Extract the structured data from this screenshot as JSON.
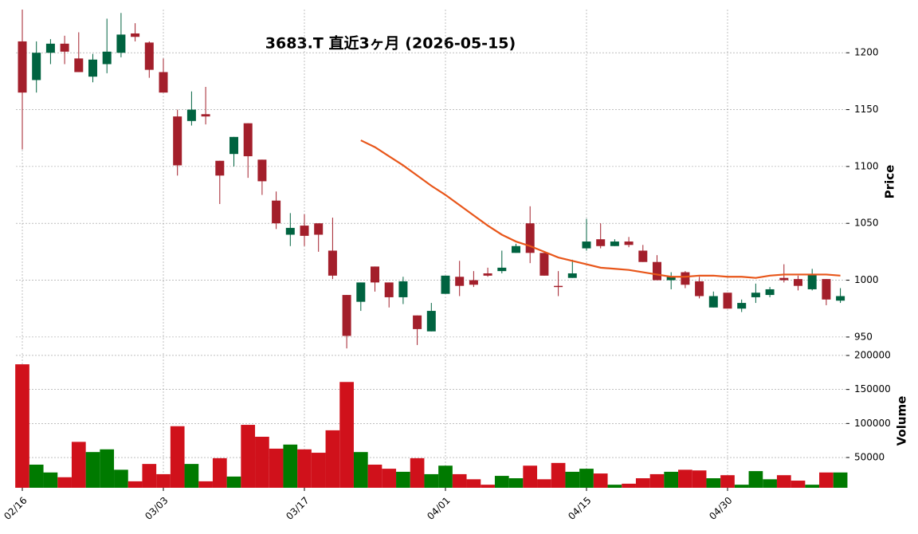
{
  "chart_data": [
    {
      "type": "candlestick",
      "title": "3683.T 直近3ヶ月 (2026-05-15)",
      "ylabel": "Price",
      "categories": [
        "02/16",
        null,
        null,
        null,
        null,
        null,
        null,
        null,
        null,
        null,
        "03/03",
        null,
        null,
        null,
        null,
        null,
        null,
        null,
        null,
        null,
        "03/17",
        null,
        null,
        null,
        null,
        null,
        null,
        null,
        null,
        null,
        "04/01",
        null,
        null,
        null,
        null,
        null,
        null,
        null,
        null,
        null,
        "04/15",
        null,
        null,
        null,
        null,
        null,
        null,
        null,
        null,
        null,
        "04/30",
        null,
        null,
        null,
        null,
        null,
        null,
        null,
        null
      ],
      "open": [
        1210,
        1176,
        1200,
        1208,
        1195,
        1179,
        1190,
        1200,
        1217,
        1209,
        1183,
        1144,
        1140,
        1146,
        1105,
        1111,
        1138,
        1106,
        1070,
        1040,
        1048,
        1050,
        1026,
        987,
        981,
        1012,
        998,
        985,
        969,
        955,
        988,
        1003,
        1000,
        1006,
        1008,
        1024,
        1050,
        1024,
        995,
        1002,
        1028,
        1036,
        1030,
        1034,
        1026,
        1016,
        1000,
        1007,
        999,
        976,
        989,
        975,
        985,
        987,
        1002,
        1001,
        992,
        1001,
        982
      ],
      "high": [
        1238,
        1210,
        1212,
        1215,
        1218,
        1199,
        1230,
        1235,
        1226,
        1210,
        1195,
        1150,
        1166,
        1170,
        1105,
        1126,
        1138,
        1106,
        1078,
        1059,
        1058,
        1050,
        1055,
        987,
        998,
        1012,
        998,
        1003,
        969,
        980,
        1004,
        1017,
        1008,
        1011,
        1026,
        1032,
        1065,
        1024,
        1008,
        1018,
        1054,
        1050,
        1036,
        1038,
        1031,
        1022,
        1007,
        1008,
        1003,
        990,
        989,
        983,
        997,
        994,
        1014,
        1004,
        1010,
        1001,
        993
      ],
      "low": [
        1115,
        1165,
        1190,
        1190,
        1183,
        1174,
        1182,
        1196,
        1210,
        1178,
        1165,
        1092,
        1136,
        1137,
        1067,
        1100,
        1090,
        1075,
        1045,
        1030,
        1030,
        1025,
        1001,
        940,
        973,
        990,
        976,
        979,
        943,
        955,
        988,
        986,
        994,
        1003,
        1006,
        1024,
        1015,
        1004,
        986,
        1002,
        1026,
        1028,
        1030,
        1029,
        1016,
        1000,
        992,
        993,
        984,
        976,
        975,
        972,
        980,
        985,
        998,
        991,
        991,
        978,
        980
      ],
      "close": [
        1165,
        1200,
        1208,
        1201,
        1183,
        1194,
        1201,
        1216,
        1214,
        1185,
        1165,
        1101,
        1150,
        1144,
        1092,
        1126,
        1109,
        1087,
        1050,
        1046,
        1039,
        1040,
        1004,
        951,
        998,
        998,
        985,
        999,
        957,
        973,
        1004,
        995,
        996,
        1004,
        1011,
        1030,
        1024,
        1004,
        994,
        1006,
        1034,
        1030,
        1034,
        1031,
        1016,
        1000,
        1003,
        996,
        986,
        986,
        975,
        980,
        989,
        992,
        1000,
        995,
        1005,
        983,
        986
      ],
      "up_color": "#006340",
      "down_color": "#a31f2b",
      "ma": {
        "color": "#e8561a",
        "values": [
          null,
          null,
          null,
          null,
          null,
          null,
          null,
          null,
          null,
          null,
          null,
          null,
          null,
          null,
          null,
          null,
          null,
          null,
          null,
          null,
          null,
          null,
          null,
          null,
          1123,
          1117,
          1109,
          1101,
          1092,
          1083,
          1075,
          1066,
          1057,
          1048,
          1040,
          1034,
          1030,
          1025,
          1020,
          1017,
          1014,
          1011,
          1010,
          1009,
          1007,
          1005,
          1003,
          1003,
          1004,
          1004,
          1003,
          1003,
          1002,
          1004,
          1005,
          1005,
          1005,
          1005,
          1004
        ]
      },
      "ylim": [
        938,
        1238
      ],
      "yticks": [
        950,
        1000,
        1050,
        1100,
        1150,
        1200
      ],
      "grid": true
    },
    {
      "type": "bar",
      "ylabel": "Volume",
      "up_color": "#007a00",
      "down_color": "#d0111b",
      "values": [
        187000,
        39500,
        28000,
        21000,
        73000,
        58000,
        62000,
        32000,
        15000,
        40500,
        25500,
        96000,
        40500,
        15000,
        49000,
        22000,
        98000,
        80500,
        63000,
        69000,
        62000,
        57000,
        90000,
        161000,
        58000,
        39500,
        33500,
        29000,
        49000,
        25500,
        38000,
        25500,
        18000,
        10000,
        23000,
        19500,
        38000,
        18000,
        42000,
        29000,
        33500,
        26500,
        10000,
        11500,
        19500,
        25500,
        29000,
        32000,
        31000,
        19500,
        24000,
        10000,
        30000,
        18000,
        24000,
        16000,
        10000,
        28000,
        28000
      ],
      "ylim": [
        5500,
        203500
      ],
      "yticks": [
        50000,
        100000,
        150000,
        200000
      ],
      "grid": true
    }
  ]
}
